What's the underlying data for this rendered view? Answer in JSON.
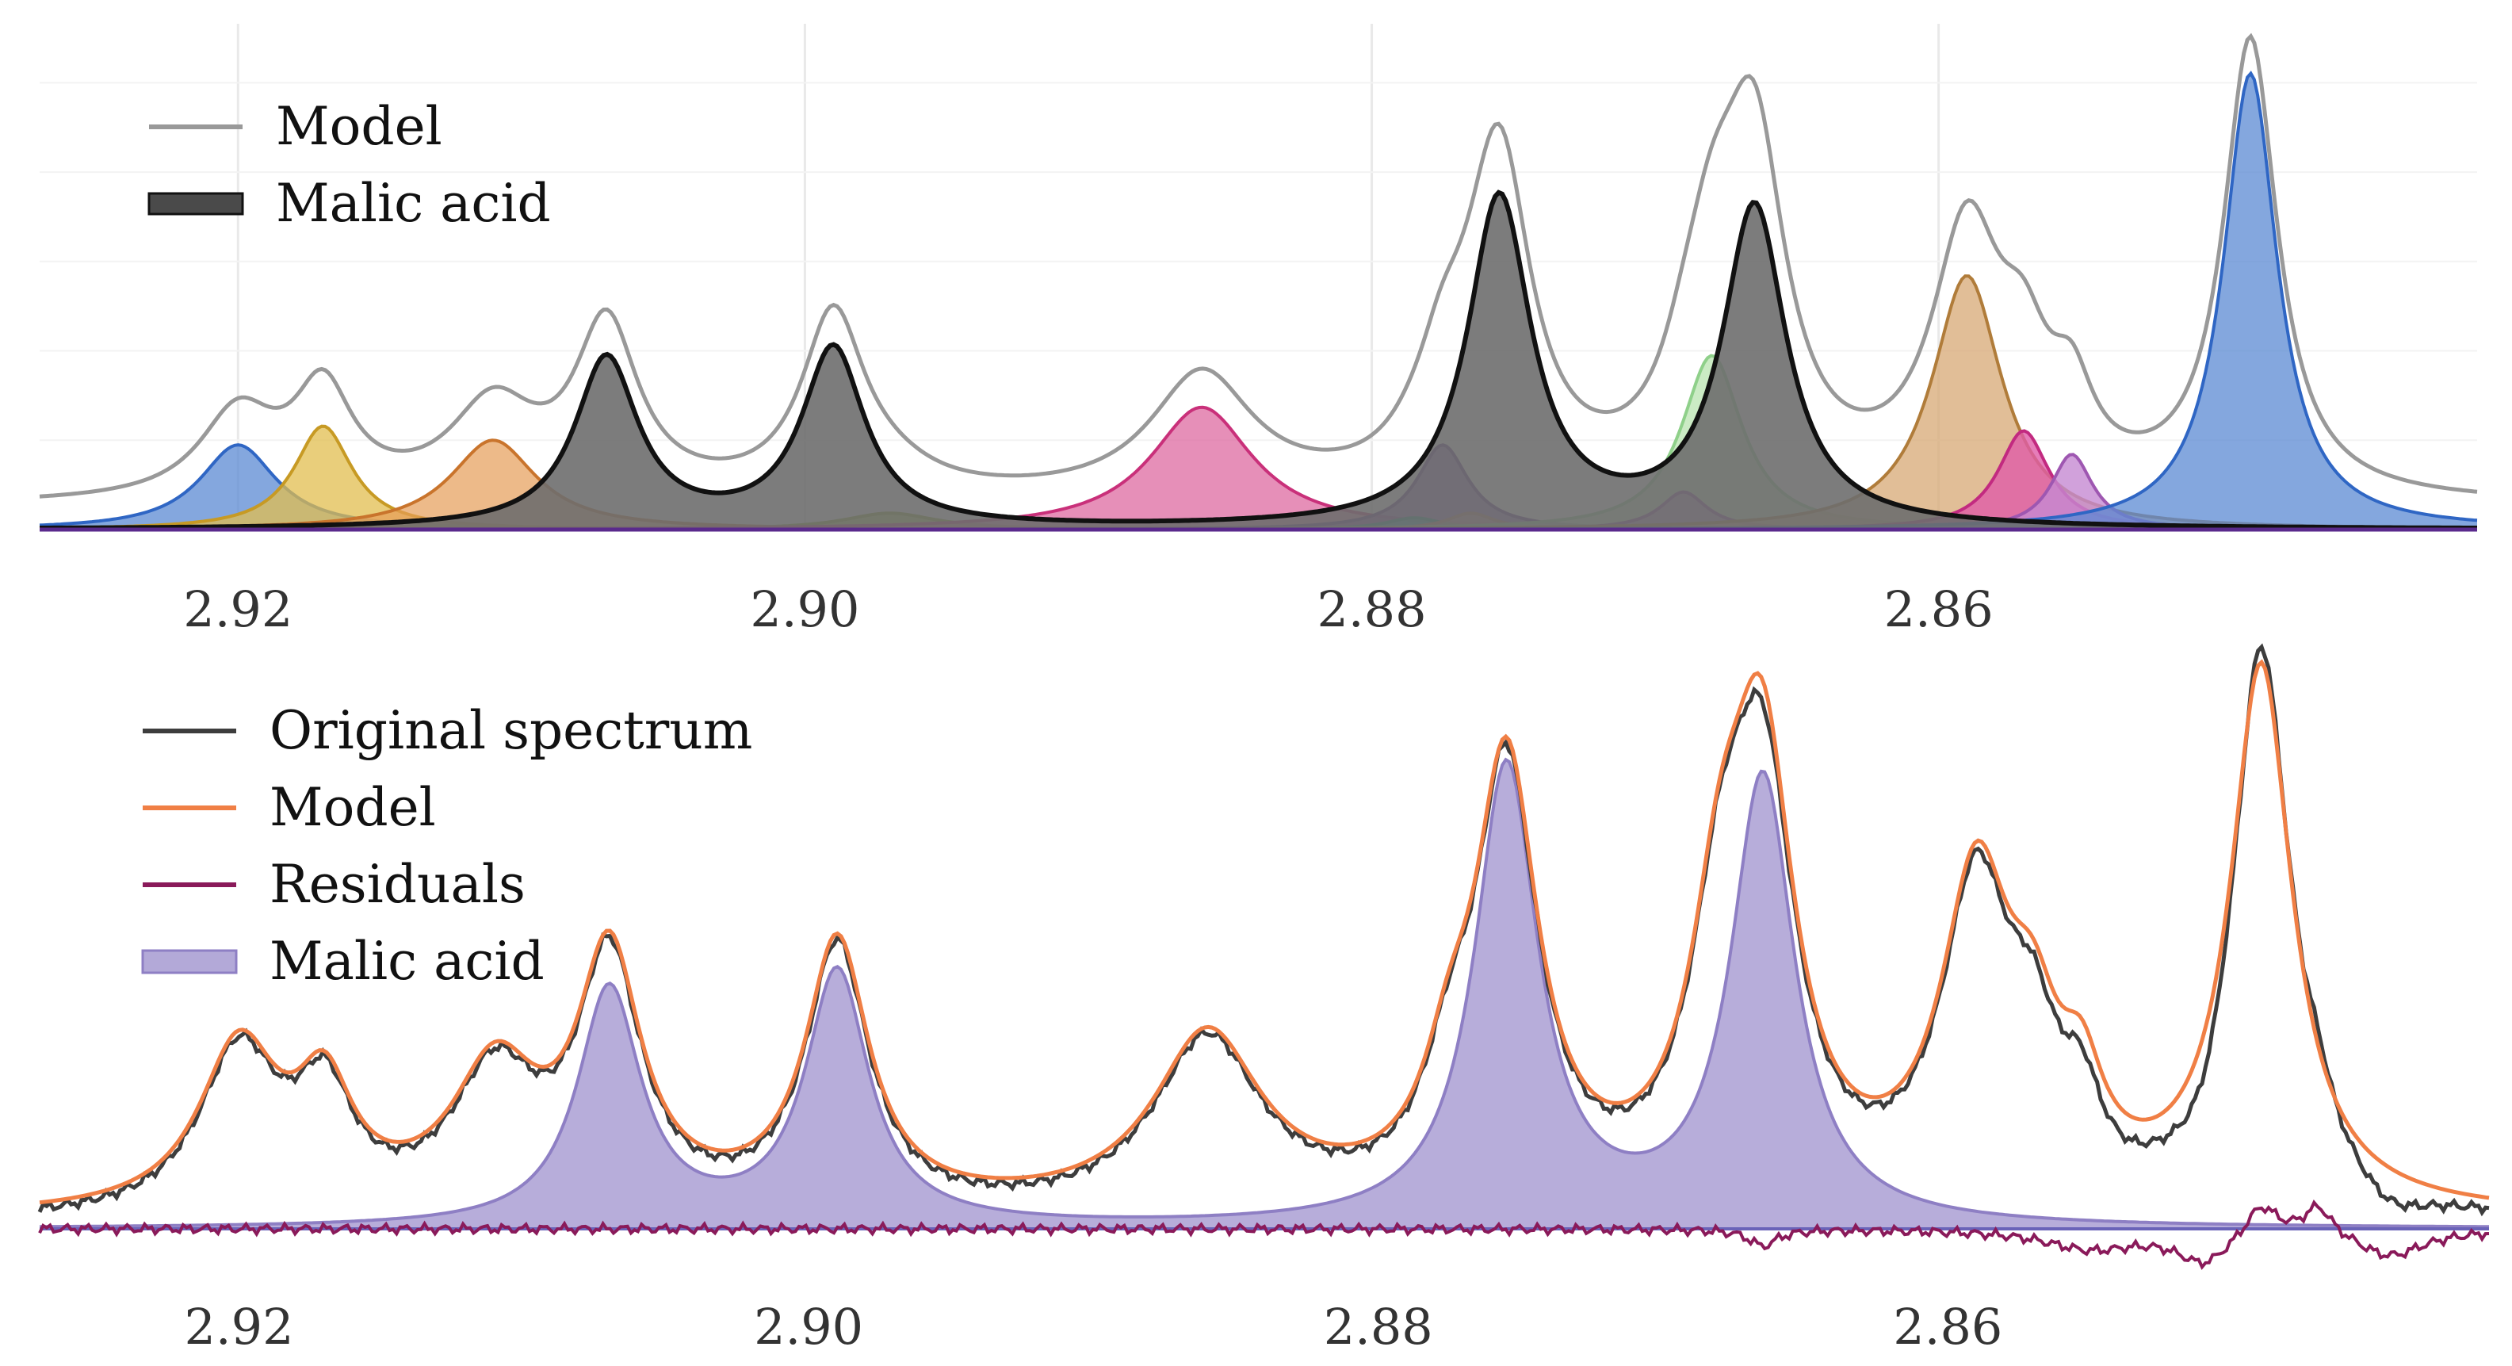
{
  "chart_data": [
    {
      "type": "area",
      "panel": "top",
      "title": "",
      "xlabel": "",
      "ylabel": "",
      "x_reversed": true,
      "xlim": [
        2.927,
        2.841
      ],
      "ylim": [
        0,
        1.05
      ],
      "x_ticks": [
        2.92,
        2.9,
        2.88,
        2.86
      ],
      "x_tick_labels": [
        "2.92",
        "2.90",
        "2.88",
        "2.86"
      ],
      "grid": true,
      "legend_position": "top-left",
      "legend": [
        {
          "label": "Model",
          "color": "#999999",
          "style": "line"
        },
        {
          "label": "Malic acid",
          "color": "#222222",
          "style": "thick-line"
        }
      ],
      "baseline": 0.05,
      "model": {
        "name": "Model",
        "color": "#999999"
      },
      "components": [
        {
          "color": "#5b8ad3",
          "edge": "#2f66c4",
          "opacity": 0.75,
          "peaks": [
            {
              "x": 2.92,
              "h": 0.18,
              "w": 0.00165
            }
          ]
        },
        {
          "color": "#e2bd4f",
          "edge": "#c79a24",
          "opacity": 0.75,
          "peaks": [
            {
              "x": 2.917,
              "h": 0.22,
              "w": 0.00125
            }
          ]
        },
        {
          "color": "#e59c57",
          "edge": "#c9742c",
          "opacity": 0.7,
          "peaks": [
            {
              "x": 2.911,
              "h": 0.19,
              "w": 0.00185
            }
          ]
        },
        {
          "color": "#a6c93a",
          "edge": "#8aae20",
          "opacity": 0.8,
          "peaks": [
            {
              "x": 2.897,
              "h": 0.035,
              "w": 0.002
            }
          ]
        },
        {
          "color": "#de6aa0",
          "edge": "#c9307a",
          "opacity": 0.75,
          "peaks": [
            {
              "x": 2.886,
              "h": 0.26,
              "w": 0.0022
            }
          ]
        },
        {
          "color": "#7e4aac",
          "edge": "#5a2a8c",
          "opacity": 0.8,
          "peaks": [
            {
              "x": 2.8775,
              "h": 0.18,
              "w": 0.0011
            }
          ]
        },
        {
          "color": "#20b09a",
          "edge": "#138a78",
          "opacity": 0.8,
          "peaks": [
            {
              "x": 2.8785,
              "h": 0.025,
              "w": 0.0012
            }
          ]
        },
        {
          "color": "#d39a8c",
          "edge": "#b77766",
          "opacity": 0.7,
          "peaks": [
            {
              "x": 2.8765,
              "h": 0.035,
              "w": 0.001
            }
          ]
        },
        {
          "color": "#b9e4b0",
          "edge": "#8fd08a",
          "opacity": 0.75,
          "peaks": [
            {
              "x": 2.868,
              "h": 0.37,
              "w": 0.0013
            }
          ]
        },
        {
          "color": "#b06fbf",
          "edge": "#913fa4",
          "opacity": 0.75,
          "peaks": [
            {
              "x": 2.869,
              "h": 0.08,
              "w": 0.001
            }
          ]
        },
        {
          "color": "#d7a874",
          "edge": "#b07c3a",
          "opacity": 0.75,
          "peaks": [
            {
              "x": 2.859,
              "h": 0.54,
              "w": 0.0015
            }
          ]
        },
        {
          "color": "#e05ca8",
          "edge": "#c22a80",
          "opacity": 0.8,
          "peaks": [
            {
              "x": 2.857,
              "h": 0.21,
              "w": 0.0011
            }
          ]
        },
        {
          "color": "#c58ad2",
          "edge": "#9e57b1",
          "opacity": 0.8,
          "peaks": [
            {
              "x": 2.8553,
              "h": 0.16,
              "w": 0.0009
            }
          ]
        },
        {
          "color": "#5b8ad3",
          "edge": "#2f66c4",
          "opacity": 0.75,
          "peaks": [
            {
              "x": 2.849,
              "h": 0.97,
              "w": 0.00115
            }
          ]
        },
        {
          "name": "Malic acid",
          "color": "#6e6e6e",
          "edge": "#111111",
          "opacity": 0.9,
          "peaks": [
            {
              "x": 2.907,
              "h": 0.36,
              "w": 0.00135
            },
            {
              "x": 2.899,
              "h": 0.38,
              "w": 0.00135
            },
            {
              "x": 2.8755,
              "h": 0.7,
              "w": 0.00135
            },
            {
              "x": 2.8665,
              "h": 0.68,
              "w": 0.00135
            }
          ]
        }
      ]
    },
    {
      "type": "line",
      "panel": "bottom",
      "title": "",
      "xlabel": "",
      "ylabel": "",
      "x_reversed": true,
      "xlim": [
        2.927,
        2.841
      ],
      "ylim": [
        -0.05,
        1.05
      ],
      "x_ticks": [
        2.92,
        2.9,
        2.88,
        2.86
      ],
      "x_tick_labels": [
        "2.92",
        "2.90",
        "2.88",
        "2.86"
      ],
      "grid": false,
      "legend_position": "top-left",
      "legend": [
        {
          "label": "Original spectrum",
          "color": "#3d3d3d",
          "style": "line"
        },
        {
          "label": "Model",
          "color": "#f07f45",
          "style": "line"
        },
        {
          "label": "Residuals",
          "color": "#8a1a5a",
          "style": "line"
        },
        {
          "label": "Malic acid",
          "color": "#8e7fc4",
          "style": "area"
        }
      ],
      "series": [
        {
          "label": "Original spectrum",
          "color": "#3d3d3d"
        },
        {
          "label": "Model",
          "color": "#f07f45"
        },
        {
          "label": "Residuals",
          "color": "#8a1a5a"
        },
        {
          "label": "Malic acid",
          "color": "#8e7fc4",
          "fill": "#b3a9d8"
        }
      ],
      "model_peaks": [
        {
          "x": 2.92,
          "h": 0.3,
          "w": 0.0017
        },
        {
          "x": 2.917,
          "h": 0.2,
          "w": 0.0012
        },
        {
          "x": 2.911,
          "h": 0.25,
          "w": 0.00185
        },
        {
          "x": 2.907,
          "h": 0.46,
          "w": 0.00135
        },
        {
          "x": 2.899,
          "h": 0.49,
          "w": 0.00135
        },
        {
          "x": 2.886,
          "h": 0.32,
          "w": 0.0023
        },
        {
          "x": 2.8775,
          "h": 0.16,
          "w": 0.0011
        },
        {
          "x": 2.8755,
          "h": 0.8,
          "w": 0.00135
        },
        {
          "x": 2.868,
          "h": 0.42,
          "w": 0.0013
        },
        {
          "x": 2.8665,
          "h": 0.76,
          "w": 0.00135
        },
        {
          "x": 2.859,
          "h": 0.58,
          "w": 0.0015
        },
        {
          "x": 2.857,
          "h": 0.22,
          "w": 0.0011
        },
        {
          "x": 2.8553,
          "h": 0.16,
          "w": 0.0009
        },
        {
          "x": 2.849,
          "h": 1.0,
          "w": 0.0013
        }
      ],
      "malic_peaks": [
        {
          "x": 2.907,
          "h": 0.44,
          "w": 0.00135
        },
        {
          "x": 2.899,
          "h": 0.47,
          "w": 0.00135
        },
        {
          "x": 2.8755,
          "h": 0.85,
          "w": 0.00135
        },
        {
          "x": 2.8665,
          "h": 0.83,
          "w": 0.00135
        }
      ],
      "residual_events": [
        {
          "x": 2.849,
          "h": 0.06,
          "w": 0.0007
        },
        {
          "x": 2.8445,
          "h": -0.05,
          "w": 0.0015
        },
        {
          "x": 2.851,
          "h": -0.06,
          "w": 0.0012
        },
        {
          "x": 2.847,
          "h": 0.055,
          "w": 0.0006
        },
        {
          "x": 2.855,
          "h": -0.035,
          "w": 0.002
        },
        {
          "x": 2.8665,
          "h": -0.03,
          "w": 0.0006
        }
      ]
    }
  ]
}
